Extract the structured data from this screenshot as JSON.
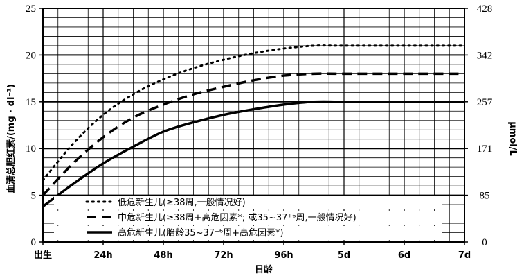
{
  "chart_data": {
    "type": "line",
    "xlabel": "日龄",
    "ylabel": "血清总胆红素/(mg · dl⁻¹)",
    "y2label": "μmol/L",
    "categories": [
      "出生",
      "24h",
      "48h",
      "72h",
      "96h",
      "5d",
      "6d",
      "7d"
    ],
    "ylim": [
      0,
      25
    ],
    "yticks": [
      0,
      5,
      10,
      15,
      20,
      25
    ],
    "y2ticks": [
      "0",
      "85",
      "171",
      "257",
      "342",
      "428"
    ],
    "grid": true,
    "legend_position": "lower-left",
    "series": [
      {
        "name": "低危新生儿(≥38周,一般情况好)",
        "style": "dotted",
        "x": [
          0,
          0.5,
          1,
          1.5,
          2,
          2.5,
          3,
          3.5,
          4,
          4.5,
          5,
          6,
          7
        ],
        "values": [
          6.6,
          10.5,
          13.6,
          15.8,
          17.4,
          18.6,
          19.5,
          20.2,
          20.7,
          21.0,
          21.0,
          21.0,
          21.0
        ]
      },
      {
        "name": "中危新生儿(≥38周+高危因素*; 或35~37⁺⁶周,一般情况好)",
        "style": "dashed",
        "x": [
          0,
          0.5,
          1,
          1.5,
          2,
          2.5,
          3,
          3.5,
          4,
          4.5,
          5,
          6,
          7
        ],
        "values": [
          5.0,
          8.4,
          11.2,
          13.3,
          14.7,
          15.8,
          16.6,
          17.3,
          17.8,
          18.0,
          18.0,
          18.0,
          18.0
        ]
      },
      {
        "name": "高危新生儿(胎龄35~37⁺⁶周+高危因素*)",
        "style": "solid",
        "x": [
          0,
          0.5,
          1,
          1.5,
          2,
          2.5,
          3,
          3.5,
          4,
          4.5,
          5,
          6,
          7
        ],
        "values": [
          3.8,
          6.2,
          8.4,
          10.2,
          11.8,
          12.8,
          13.6,
          14.2,
          14.7,
          15.0,
          15.0,
          15.0,
          15.0
        ]
      }
    ]
  },
  "colors": {
    "line": "#000000",
    "grid": "#000000",
    "background": "#ffffff"
  }
}
